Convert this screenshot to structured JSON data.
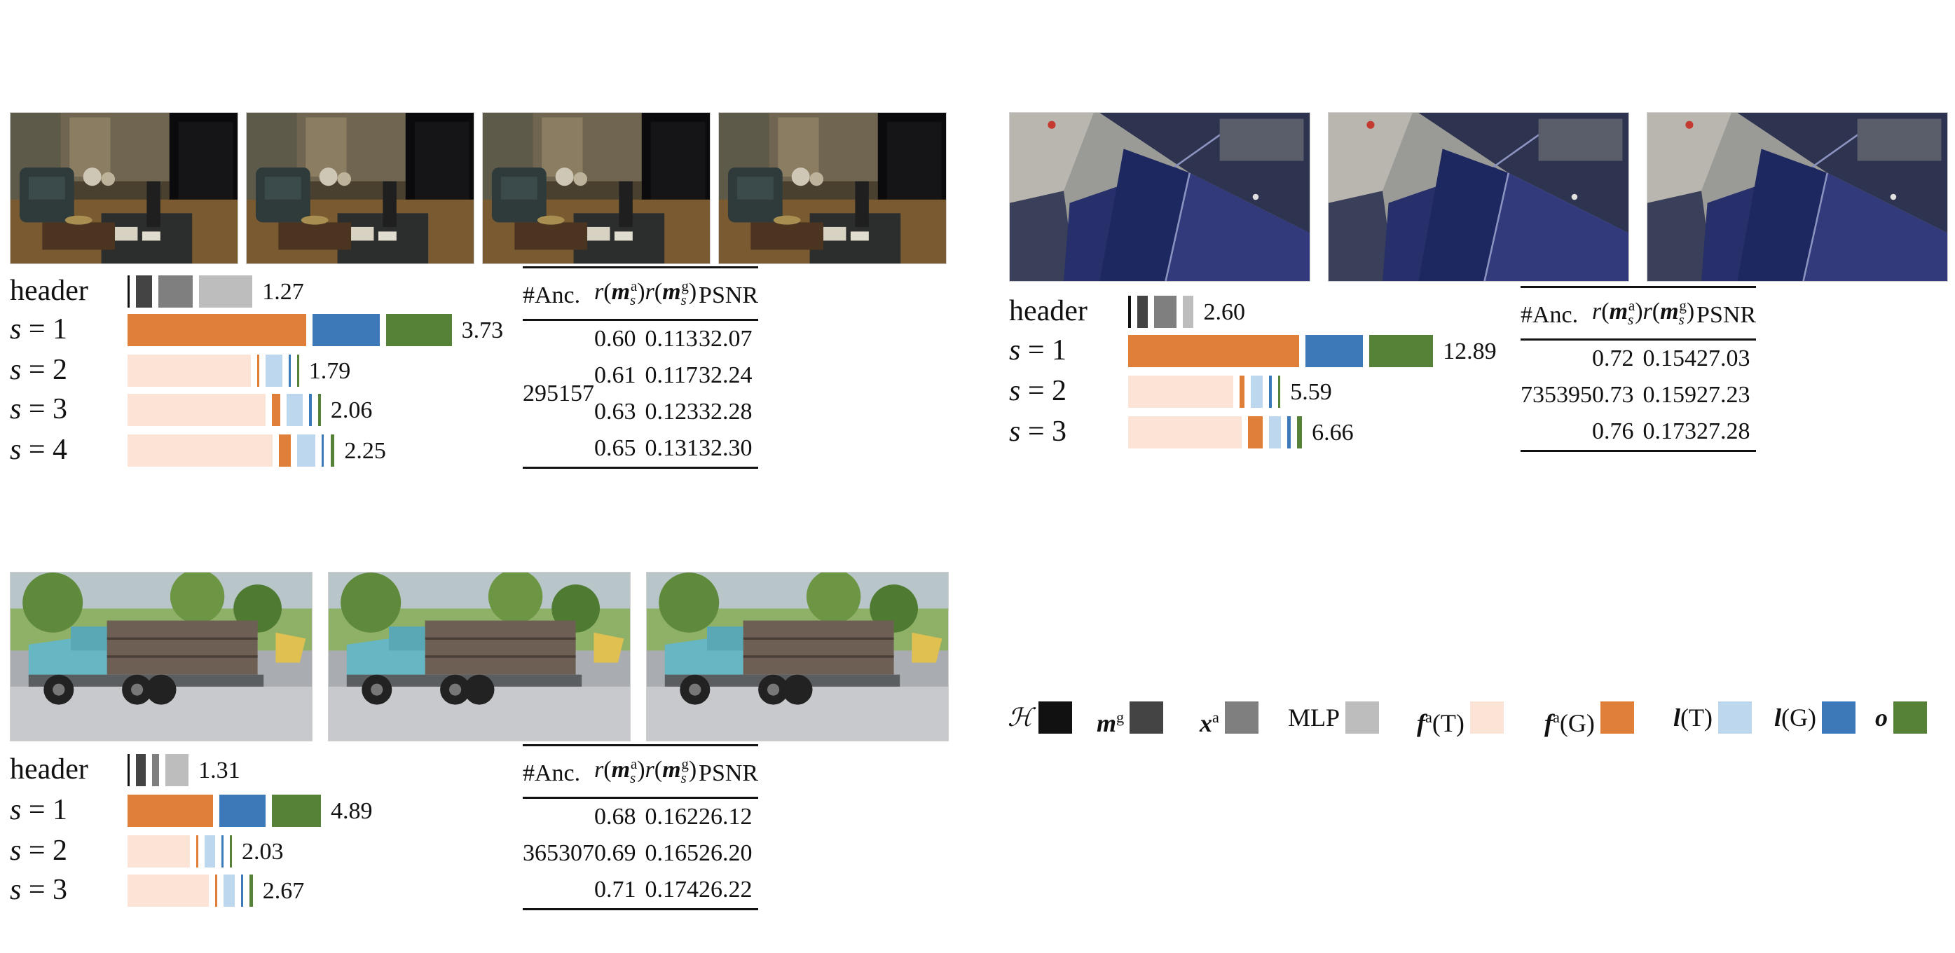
{
  "legend": [
    {
      "label": "ℋ",
      "color": "#111111"
    },
    {
      "label": "m",
      "sup": "g",
      "color": "#444444"
    },
    {
      "label": "x",
      "sup": "a",
      "color": "#7f7f7f"
    },
    {
      "label": "MLP",
      "color": "#bdbdbd"
    },
    {
      "label": "f",
      "sup": "a",
      "suffix": "(T)",
      "color": "#fbe4d5"
    },
    {
      "label": "f",
      "sup": "a",
      "suffix": "(G)",
      "color": "#e07f3a"
    },
    {
      "label": "l",
      "suffix": "(T)",
      "color": "#bdd7ee"
    },
    {
      "label": "l",
      "suffix": "(G)",
      "color": "#3d78b8"
    },
    {
      "label": "o",
      "color": "#568238"
    }
  ],
  "table_headers": {
    "anchors": "#Anc.",
    "ra": "r(m_s^a)",
    "rg": "r(m_s^g)",
    "psnr": "PSNR"
  },
  "chart_data": [
    {
      "type": "bar",
      "title": "",
      "images": [
        "room",
        "room",
        "room",
        "room"
      ],
      "rows": [
        {
          "label": "header",
          "total": "1.27",
          "segments": [
            {
              "component": "ℋ",
              "value": 0.01
            },
            {
              "component": "m^g",
              "value": 0.12
            },
            {
              "component": "x^a",
              "value": 0.25
            },
            {
              "component": "MLP",
              "value": 0.39
            }
          ]
        },
        {
          "label": "s = 1",
          "total": "3.73",
          "segments": [
            {
              "component": "f^a(G)",
              "value": 1.31
            },
            {
              "component": "l(G)",
              "value": 0.49
            },
            {
              "component": "o",
              "value": 0.48
            }
          ]
        },
        {
          "label": "s = 2",
          "total": "1.79",
          "segments": [
            {
              "component": "f^a(T)",
              "value": 0.9
            },
            {
              "component": "f^a(G)",
              "value": 0.02
            },
            {
              "component": "l(T)",
              "value": 0.12
            },
            {
              "component": "l(G)",
              "value": 0.01
            },
            {
              "component": "o",
              "value": 0.01
            }
          ]
        },
        {
          "label": "s = 3",
          "total": "2.06",
          "segments": [
            {
              "component": "f^a(T)",
              "value": 1.01
            },
            {
              "component": "f^a(G)",
              "value": 0.06
            },
            {
              "component": "l(T)",
              "value": 0.12
            },
            {
              "component": "l(G)",
              "value": 0.02
            },
            {
              "component": "o",
              "value": 0.02
            }
          ]
        },
        {
          "label": "s = 4",
          "total": "2.25",
          "segments": [
            {
              "component": "f^a(T)",
              "value": 1.06
            },
            {
              "component": "f^a(G)",
              "value": 0.09
            },
            {
              "component": "l(T)",
              "value": 0.13
            },
            {
              "component": "l(G)",
              "value": 0.02
            },
            {
              "component": "o",
              "value": 0.03
            }
          ]
        }
      ],
      "table": {
        "anchors": "295157",
        "rows": [
          {
            "ra": "0.60",
            "rg": "0.113",
            "psnr": "32.07"
          },
          {
            "ra": "0.61",
            "rg": "0.117",
            "psnr": "32.24"
          },
          {
            "ra": "0.63",
            "rg": "0.123",
            "psnr": "32.28"
          },
          {
            "ra": "0.65",
            "rg": "0.131",
            "psnr": "32.30"
          }
        ]
      }
    },
    {
      "type": "bar",
      "title": "",
      "images": [
        "aerial",
        "aerial",
        "aerial"
      ],
      "rows": [
        {
          "label": "header",
          "total": "2.60",
          "segments": [
            {
              "component": "ℋ",
              "value": 0.08
            },
            {
              "component": "m^g",
              "value": 0.36
            },
            {
              "component": "x^a",
              "value": 0.71
            },
            {
              "component": "MLP",
              "value": 0.36
            }
          ]
        },
        {
          "label": "s = 1",
          "total": "12.89",
          "segments": [
            {
              "component": "f^a(G)",
              "value": 5.55
            },
            {
              "component": "l(G)",
              "value": 1.85
            },
            {
              "component": "o",
              "value": 2.08
            }
          ]
        },
        {
          "label": "s = 2",
          "total": "5.59",
          "segments": [
            {
              "component": "f^a(T)",
              "value": 3.41
            },
            {
              "component": "f^a(G)",
              "value": 0.16
            },
            {
              "component": "l(T)",
              "value": 0.39
            },
            {
              "component": "l(G)",
              "value": 0.08
            },
            {
              "component": "o",
              "value": 0.08
            }
          ]
        },
        {
          "label": "s = 3",
          "total": "6.66",
          "segments": [
            {
              "component": "f^a(T)",
              "value": 3.68
            },
            {
              "component": "f^a(G)",
              "value": 0.47
            },
            {
              "component": "l(T)",
              "value": 0.39
            },
            {
              "component": "l(G)",
              "value": 0.12
            },
            {
              "component": "o",
              "value": 0.16
            }
          ]
        }
      ],
      "table": {
        "anchors": "735395",
        "rows": [
          {
            "ra": "0.72",
            "rg": "0.154",
            "psnr": "27.03"
          },
          {
            "ra": "0.73",
            "rg": "0.159",
            "psnr": "27.23"
          },
          {
            "ra": "0.76",
            "rg": "0.173",
            "psnr": "27.28"
          }
        ]
      }
    },
    {
      "type": "bar",
      "title": "",
      "images": [
        "truck",
        "truck",
        "truck"
      ],
      "rows": [
        {
          "label": "header",
          "total": "1.31",
          "segments": [
            {
              "component": "ℋ",
              "value": 0.02
            },
            {
              "component": "m^g",
              "value": 0.14
            },
            {
              "component": "x^a",
              "value": 0.1
            },
            {
              "component": "MLP",
              "value": 0.32
            }
          ]
        },
        {
          "label": "s = 1",
          "total": "4.89",
          "segments": [
            {
              "component": "f^a(G)",
              "value": 1.2
            },
            {
              "component": "l(G)",
              "value": 0.64
            },
            {
              "component": "o",
              "value": 0.69
            }
          ]
        },
        {
          "label": "s = 2",
          "total": "2.03",
          "segments": [
            {
              "component": "f^a(T)",
              "value": 0.87
            },
            {
              "component": "f^a(G)",
              "value": 0.02
            },
            {
              "component": "l(T)",
              "value": 0.15
            },
            {
              "component": "l(G)",
              "value": 0.01
            },
            {
              "component": "o",
              "value": 0.01
            }
          ]
        },
        {
          "label": "s = 3",
          "total": "2.67",
          "segments": [
            {
              "component": "f^a(T)",
              "value": 1.14
            },
            {
              "component": "f^a(G)",
              "value": 0.03
            },
            {
              "component": "l(T)",
              "value": 0.15
            },
            {
              "component": "l(G)",
              "value": 0.02
            },
            {
              "component": "o",
              "value": 0.05
            }
          ]
        }
      ],
      "table": {
        "anchors": "365307",
        "rows": [
          {
            "ra": "0.68",
            "rg": "0.162",
            "psnr": "26.12"
          },
          {
            "ra": "0.69",
            "rg": "0.165",
            "psnr": "26.20"
          },
          {
            "ra": "0.71",
            "rg": "0.174",
            "psnr": "26.22"
          }
        ]
      }
    }
  ]
}
